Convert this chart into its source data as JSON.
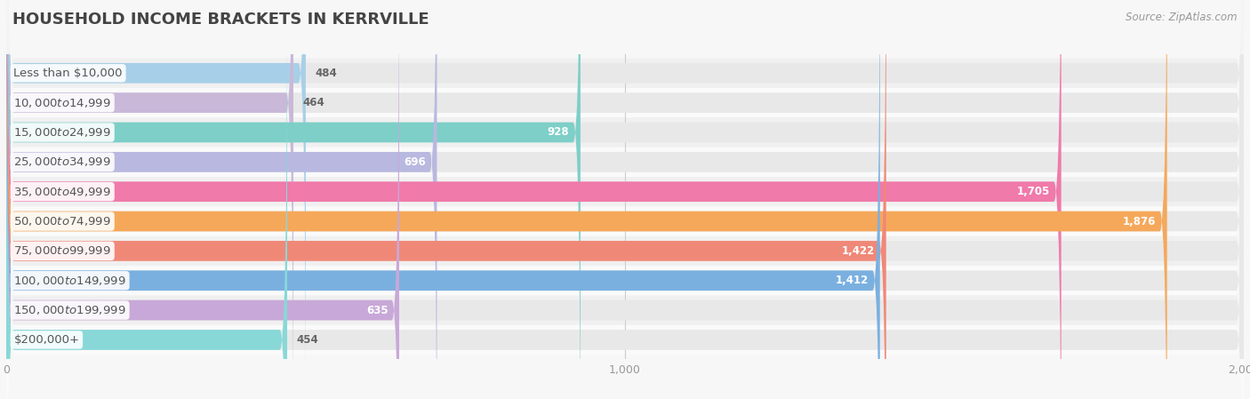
{
  "title": "HOUSEHOLD INCOME BRACKETS IN KERRVILLE",
  "source": "Source: ZipAtlas.com",
  "categories": [
    "Less than $10,000",
    "$10,000 to $14,999",
    "$15,000 to $24,999",
    "$25,000 to $34,999",
    "$35,000 to $49,999",
    "$50,000 to $74,999",
    "$75,000 to $99,999",
    "$100,000 to $149,999",
    "$150,000 to $199,999",
    "$200,000+"
  ],
  "values": [
    484,
    464,
    928,
    696,
    1705,
    1876,
    1422,
    1412,
    635,
    454
  ],
  "bar_colors": [
    "#a8cfe8",
    "#c9b8d8",
    "#7dcfc8",
    "#b8b8e0",
    "#f07aaa",
    "#f5a85a",
    "#f08878",
    "#7ab0e0",
    "#c8a8d8",
    "#88d8d8"
  ],
  "xlim": [
    0,
    2000
  ],
  "xticks": [
    0,
    1000,
    2000
  ],
  "background_color": "#f7f7f7",
  "bar_background_color": "#e8e8e8",
  "row_background_even": "#f0f0f0",
  "row_background_odd": "#fafafa",
  "title_fontsize": 13,
  "label_fontsize": 9.5,
  "value_fontsize": 8.5,
  "source_fontsize": 8.5,
  "value_threshold": 600
}
